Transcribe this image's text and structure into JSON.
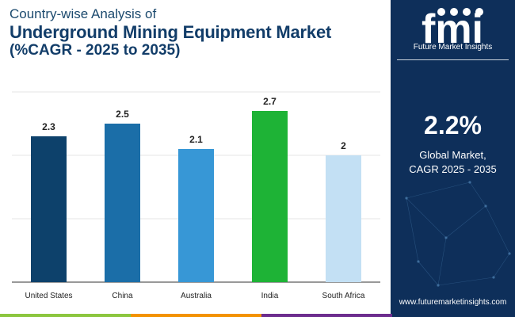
{
  "header": {
    "line1": "Country-wise Analysis of",
    "line2": "Underground Mining Equipment Market",
    "line3": "(%CAGR - 2025 to 2035)"
  },
  "chart_data": {
    "type": "bar",
    "categories": [
      "United States",
      "China",
      "Australia",
      "India",
      "South Africa"
    ],
    "values": [
      2.3,
      2.5,
      2.1,
      2.7,
      2
    ],
    "value_labels": [
      "2.3",
      "2.5",
      "2.1",
      "2.7",
      "2"
    ],
    "bar_colors": [
      "#0d416b",
      "#1b6ea8",
      "#3797d6",
      "#1eb336",
      "#c3e0f4"
    ],
    "ylim": [
      0,
      3.2
    ],
    "grid": true,
    "legend": "none"
  },
  "sidebar": {
    "brand": "Future Market Insights",
    "kpi_value": "2.2%",
    "kpi_label_1": "Global Market,",
    "kpi_label_2": "CAGR 2025 - 2035",
    "website": "www.futuremarketinsights.com"
  },
  "colors": {
    "navy": "#0e2f5a",
    "bar_green": "#8cc63f",
    "bar_orange": "#f39200",
    "bar_purple": "#6d2d8e"
  }
}
